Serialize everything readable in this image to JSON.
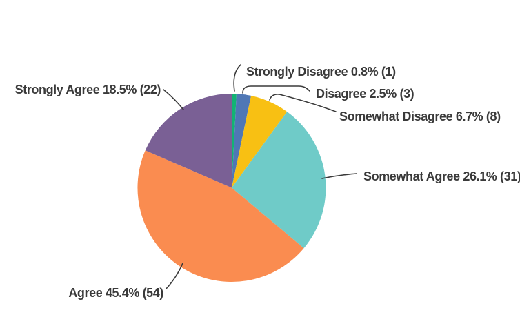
{
  "chart_data": {
    "type": "pie",
    "title": "",
    "legend": "none",
    "label_format": "name percent% (count)",
    "direction": "clockwise",
    "start_angle_deg": 0,
    "categories": [
      "Strongly Disagree",
      "Disagree",
      "Somewhat Disagree",
      "Somewhat Agree",
      "Agree",
      "Strongly Agree"
    ],
    "values": [
      0.8,
      2.5,
      6.7,
      26.1,
      45.4,
      18.5
    ],
    "counts": [
      1,
      3,
      8,
      31,
      54,
      22
    ],
    "slices": [
      {
        "id": "strongly-disagree",
        "name": "Strongly Disagree",
        "percent": 0.8,
        "count": 1,
        "color": "#12b374",
        "label": "Strongly Disagree 0.8% (1)"
      },
      {
        "id": "disagree",
        "name": "Disagree",
        "percent": 2.5,
        "count": 3,
        "color": "#4f77b5",
        "label": "Disagree 2.5% (3)"
      },
      {
        "id": "somewhat-disagree",
        "name": "Somewhat Disagree",
        "percent": 6.7,
        "count": 8,
        "color": "#f8c013",
        "label": "Somewhat Disagree 6.7% (8)"
      },
      {
        "id": "somewhat-agree",
        "name": "Somewhat Agree",
        "percent": 26.1,
        "count": 31,
        "color": "#6fcbc8",
        "label": "Somewhat Agree 26.1% (31)"
      },
      {
        "id": "agree",
        "name": "Agree",
        "percent": 45.4,
        "count": 54,
        "color": "#fa8c50",
        "label": "Agree 45.4% (54)"
      },
      {
        "id": "strongly-agree",
        "name": "Strongly Agree",
        "percent": 18.5,
        "count": 22,
        "color": "#7a6095",
        "label": "Strongly Agree 18.5% (22)"
      }
    ],
    "colors": {
      "label_text": "#3a3a3a",
      "leader_line": "#3a3a3a",
      "background": "#ffffff"
    }
  }
}
